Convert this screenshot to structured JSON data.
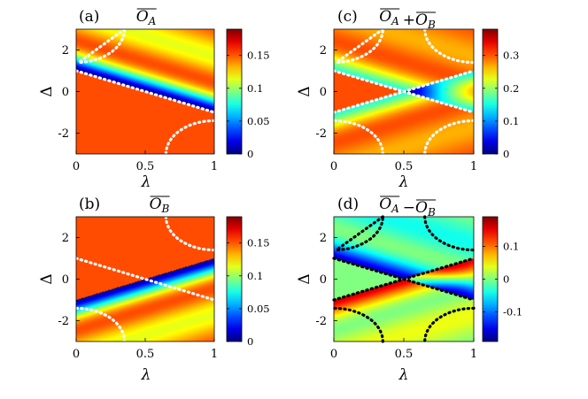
{
  "chart_data": [
    {
      "type": "heatmap",
      "panel_label": "(a)",
      "title": "O_A",
      "title_parts": [
        {
          "text": "O",
          "sub": "A",
          "bar": true
        }
      ],
      "xlabel": "λ",
      "ylabel": "Δ",
      "xlim": [
        0,
        1
      ],
      "ylim": [
        -3,
        3
      ],
      "xticks": [
        "0",
        "0.5",
        "1"
      ],
      "yticks": [
        "-2",
        "0",
        "2"
      ],
      "colormap": "jet",
      "colorbar_range": [
        0,
        0.19
      ],
      "colorbar_ticks": [
        "0",
        "0.05",
        "0.1",
        "0.15"
      ],
      "boundary_color": "#ffffff"
    },
    {
      "type": "heatmap",
      "panel_label": "(c)",
      "title": "O_A + O_B",
      "title_parts": [
        {
          "text": "O",
          "sub": "A",
          "bar": true
        },
        {
          "op": "+"
        },
        {
          "text": "O",
          "sub": "B",
          "bar": true
        }
      ],
      "xlabel": "λ",
      "ylabel": "Δ",
      "xlim": [
        0,
        1
      ],
      "ylim": [
        -3,
        3
      ],
      "xticks": [
        "0",
        "0.5",
        "1"
      ],
      "yticks": [
        "-2",
        "0",
        "2"
      ],
      "colormap": "jet",
      "colorbar_range": [
        0,
        0.38
      ],
      "colorbar_ticks": [
        "0",
        "0.1",
        "0.2",
        "0.3"
      ],
      "boundary_color": "#ffffff"
    },
    {
      "type": "heatmap",
      "panel_label": "(b)",
      "title": "O_B",
      "title_parts": [
        {
          "text": "O",
          "sub": "B",
          "bar": true
        }
      ],
      "xlabel": "λ",
      "ylabel": "Δ",
      "xlim": [
        0,
        1
      ],
      "ylim": [
        -3,
        3
      ],
      "xticks": [
        "0",
        "0.5",
        "1"
      ],
      "yticks": [
        "-2",
        "0",
        "2"
      ],
      "colormap": "jet",
      "colorbar_range": [
        0,
        0.19
      ],
      "colorbar_ticks": [
        "0",
        "0.05",
        "0.1",
        "0.15"
      ],
      "boundary_color": "#ffffff"
    },
    {
      "type": "heatmap",
      "panel_label": "(d)",
      "title": "O_A − O_B",
      "title_parts": [
        {
          "text": "O",
          "sub": "A",
          "bar": true
        },
        {
          "op": "−"
        },
        {
          "text": "O",
          "sub": "B",
          "bar": true
        }
      ],
      "xlabel": "λ",
      "ylabel": "Δ",
      "xlim": [
        0,
        1
      ],
      "ylim": [
        -3,
        3
      ],
      "xticks": [
        "0",
        "0.5",
        "1"
      ],
      "yticks": [
        "-2",
        "0",
        "2"
      ],
      "colormap": "jet",
      "colorbar_range": [
        -0.19,
        0.19
      ],
      "colorbar_ticks": [
        "0.1",
        "0",
        "-0.1"
      ],
      "boundary_color": "#000000"
    }
  ]
}
